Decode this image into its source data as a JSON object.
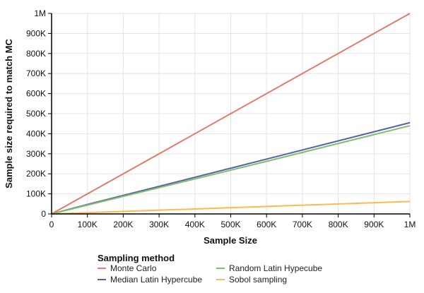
{
  "chart_data": {
    "type": "line",
    "title": "",
    "xlabel": "Sample Size",
    "ylabel": "Sample size required to match MC",
    "xlim": [
      0,
      1000000
    ],
    "ylim": [
      0,
      1000000
    ],
    "grid": true,
    "x_ticks": [
      0,
      100000,
      200000,
      300000,
      400000,
      500000,
      600000,
      700000,
      800000,
      900000,
      1000000
    ],
    "x_tick_labels": [
      "0",
      "100K",
      "200K",
      "300K",
      "400K",
      "500K",
      "600K",
      "700K",
      "800K",
      "900K",
      "1M"
    ],
    "y_ticks": [
      0,
      100000,
      200000,
      300000,
      400000,
      500000,
      600000,
      700000,
      800000,
      900000,
      1000000
    ],
    "y_tick_labels": [
      "0",
      "100K",
      "200K",
      "300K",
      "400K",
      "500K",
      "600K",
      "700K",
      "800K",
      "900K",
      "1M"
    ],
    "legend": {
      "title": "Sampling method",
      "placement": "bottom"
    },
    "series": [
      {
        "name": "Monte Carlo",
        "color": "#e07b6e",
        "x": [
          0,
          1000000
        ],
        "y": [
          0,
          1000000
        ]
      },
      {
        "name": "Median Latin Hypercube",
        "color": "#5c5ea8",
        "x": [
          0,
          100000,
          500000,
          1000000
        ],
        "y": [
          0,
          47000,
          228000,
          455000
        ]
      },
      {
        "name": "Random Latin Hypecube",
        "color": "#7dbf6b",
        "x": [
          0,
          100000,
          500000,
          1000000
        ],
        "y": [
          0,
          44000,
          218000,
          440000
        ]
      },
      {
        "name": "Sobol sampling",
        "color": "#ffb84f",
        "x": [
          0,
          1000000
        ],
        "y": [
          0,
          62000
        ]
      }
    ],
    "legend_order": [
      0,
      2,
      1,
      3
    ]
  }
}
